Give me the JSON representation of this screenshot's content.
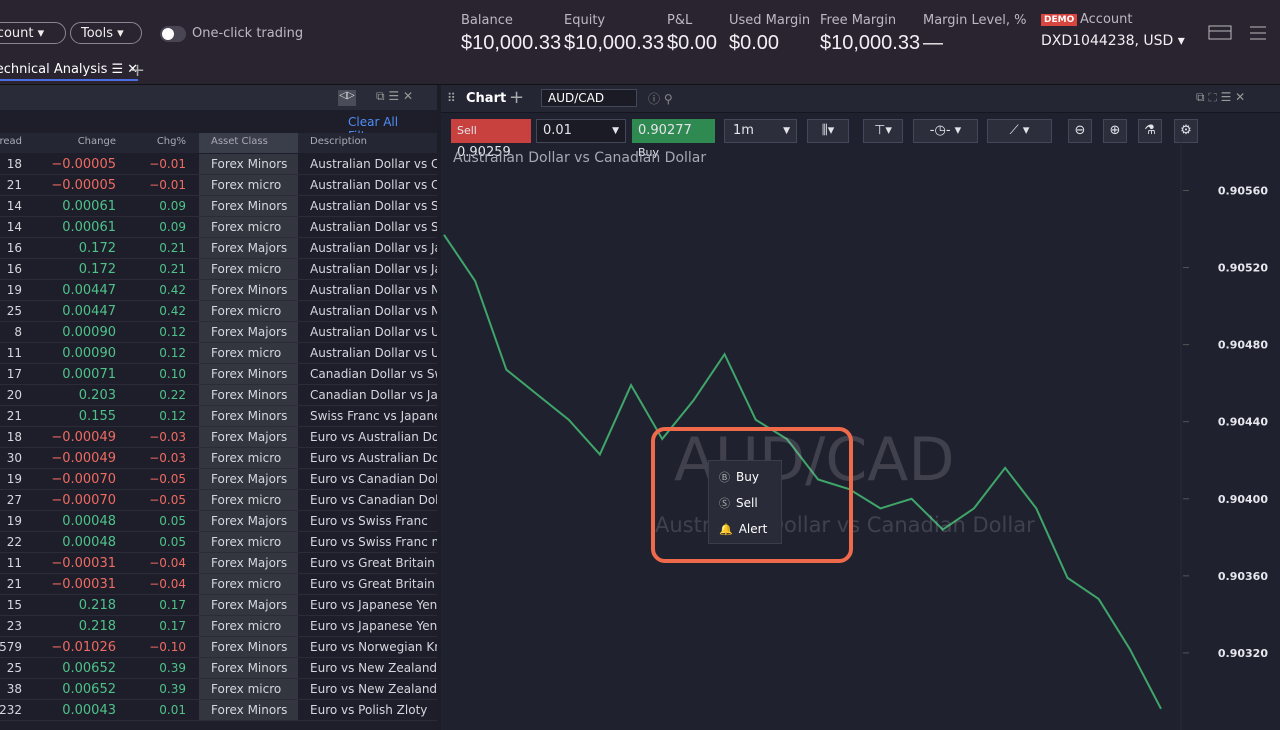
{
  "top_bar": {
    "account_menu": "Account",
    "tools_menu": "Tools",
    "one_click": "One-click trading",
    "stats": [
      {
        "label": "Balance",
        "value": "$10,000.33"
      },
      {
        "label": "Equity",
        "value": "$10,000.33"
      },
      {
        "label": "P&L",
        "value": "$0.00"
      },
      {
        "label": "Used Margin",
        "value": "$0.00"
      },
      {
        "label": "Free Margin",
        "value": "$10,000.33"
      },
      {
        "label": "Margin Level, %",
        "value": "—"
      }
    ],
    "demo_badge": "DEMO",
    "account_label": "Account",
    "account_id": "DXD1044238, USD"
  },
  "tabs": {
    "active": "Technical Analysis"
  },
  "watchlist": {
    "clear_filters": "Clear All Filters",
    "columns": [
      "Spread",
      "Change",
      "Chg%",
      "Asset Class",
      "Description"
    ],
    "rows": [
      [
        "18",
        "−0.00005",
        "−0.01",
        "Forex Minors",
        "Australian Dollar vs Ca"
      ],
      [
        "21",
        "−0.00005",
        "−0.01",
        "Forex micro",
        "Australian Dollar vs Can"
      ],
      [
        "14",
        "0.00061",
        "0.09",
        "Forex Minors",
        "Australian Dollar vs Sw"
      ],
      [
        "14",
        "0.00061",
        "0.09",
        "Forex micro",
        "Australian Dollar vs Swi"
      ],
      [
        "16",
        "0.172",
        "0.21",
        "Forex Majors",
        "Australian Dollar vs Jap"
      ],
      [
        "16",
        "0.172",
        "0.21",
        "Forex micro",
        "Australian Dollar vs Jap"
      ],
      [
        "19",
        "0.00447",
        "0.42",
        "Forex Minors",
        "Australian Dollar vs Ne"
      ],
      [
        "25",
        "0.00447",
        "0.42",
        "Forex micro",
        "Australian Dollar vs New"
      ],
      [
        "8",
        "0.00090",
        "0.12",
        "Forex Majors",
        "Australian Dollar vs US"
      ],
      [
        "11",
        "0.00090",
        "0.12",
        "Forex micro",
        "Australian Dollar vs US I"
      ],
      [
        "17",
        "0.00071",
        "0.10",
        "Forex Minors",
        "Canadian Dollar vs Swi"
      ],
      [
        "20",
        "0.203",
        "0.22",
        "Forex Minors",
        "Canadian Dollar vs Japa"
      ],
      [
        "21",
        "0.155",
        "0.12",
        "Forex Minors",
        "Swiss Franc vs Japanese"
      ],
      [
        "18",
        "−0.00049",
        "−0.03",
        "Forex Majors",
        "Euro vs Australian Dolla"
      ],
      [
        "30",
        "−0.00049",
        "−0.03",
        "Forex micro",
        "Euro vs Australian Dolla"
      ],
      [
        "19",
        "−0.00070",
        "−0.05",
        "Forex Majors",
        "Euro vs Canadian Dolla"
      ],
      [
        "27",
        "−0.00070",
        "−0.05",
        "Forex micro",
        "Euro vs Canadian Dolla"
      ],
      [
        "19",
        "0.00048",
        "0.05",
        "Forex Majors",
        "Euro vs Swiss Franc"
      ],
      [
        "22",
        "0.00048",
        "0.05",
        "Forex micro",
        "Euro vs Swiss Franc mi"
      ],
      [
        "11",
        "−0.00031",
        "−0.04",
        "Forex Majors",
        "Euro vs Great Britain Po"
      ],
      [
        "21",
        "−0.00031",
        "−0.04",
        "Forex micro",
        "Euro vs Great Britain Po"
      ],
      [
        "15",
        "0.218",
        "0.17",
        "Forex Majors",
        "Euro vs Japanese Yen"
      ],
      [
        "23",
        "0.218",
        "0.17",
        "Forex micro",
        "Euro vs Japanese Yen m"
      ],
      [
        "579",
        "−0.01026",
        "−0.10",
        "Forex Minors",
        "Euro vs Norwegian Kro"
      ],
      [
        "25",
        "0.00652",
        "0.39",
        "Forex Minors",
        "Euro vs New Zealand D"
      ],
      [
        "38",
        "0.00652",
        "0.39",
        "Forex micro",
        "Euro vs New Zealand D"
      ],
      [
        "232",
        "0.00043",
        "0.01",
        "Forex Minors",
        "Euro vs Polish Zloty"
      ]
    ]
  },
  "chart_panel": {
    "tab": "Chart",
    "symbol": "AUD/CAD",
    "sell_label": "Sell",
    "sell_price": "0.90259",
    "quantity": "0.01",
    "buy_price": "0.90277",
    "buy_label": "Buy",
    "timeframe": "1m",
    "title": "Australian Dollar vs Canadian Dollar",
    "watermark_symbol": "AUD/CAD",
    "watermark_name": "Australian Dollar vs Canadian Dollar",
    "context_menu": [
      "Buy",
      "Sell",
      "Alert"
    ]
  },
  "chart_data": {
    "type": "line",
    "color": "#3fa66a",
    "values": [
      0.90537,
      0.90513,
      0.90467,
      0.90454,
      0.90441,
      0.90423,
      0.90459,
      0.90431,
      0.90451,
      0.90475,
      0.90441,
      0.90431,
      0.9041,
      0.90405,
      0.90395,
      0.904,
      0.90384,
      0.90395,
      0.90416,
      0.90395,
      0.90359,
      0.90348,
      0.90322,
      0.90291
    ],
    "ylim": [
      0.9028,
      0.90581
    ],
    "yticks": [
      {
        "value": 0.9056,
        "label": "0.90560"
      },
      {
        "value": 0.9052,
        "label": "0.90520"
      },
      {
        "value": 0.9048,
        "label": "0.90480"
      },
      {
        "value": 0.9044,
        "label": "0.90440"
      },
      {
        "value": 0.904,
        "label": "0.90400"
      },
      {
        "value": 0.9036,
        "label": "0.90360"
      },
      {
        "value": 0.9032,
        "label": "0.90320"
      }
    ]
  }
}
